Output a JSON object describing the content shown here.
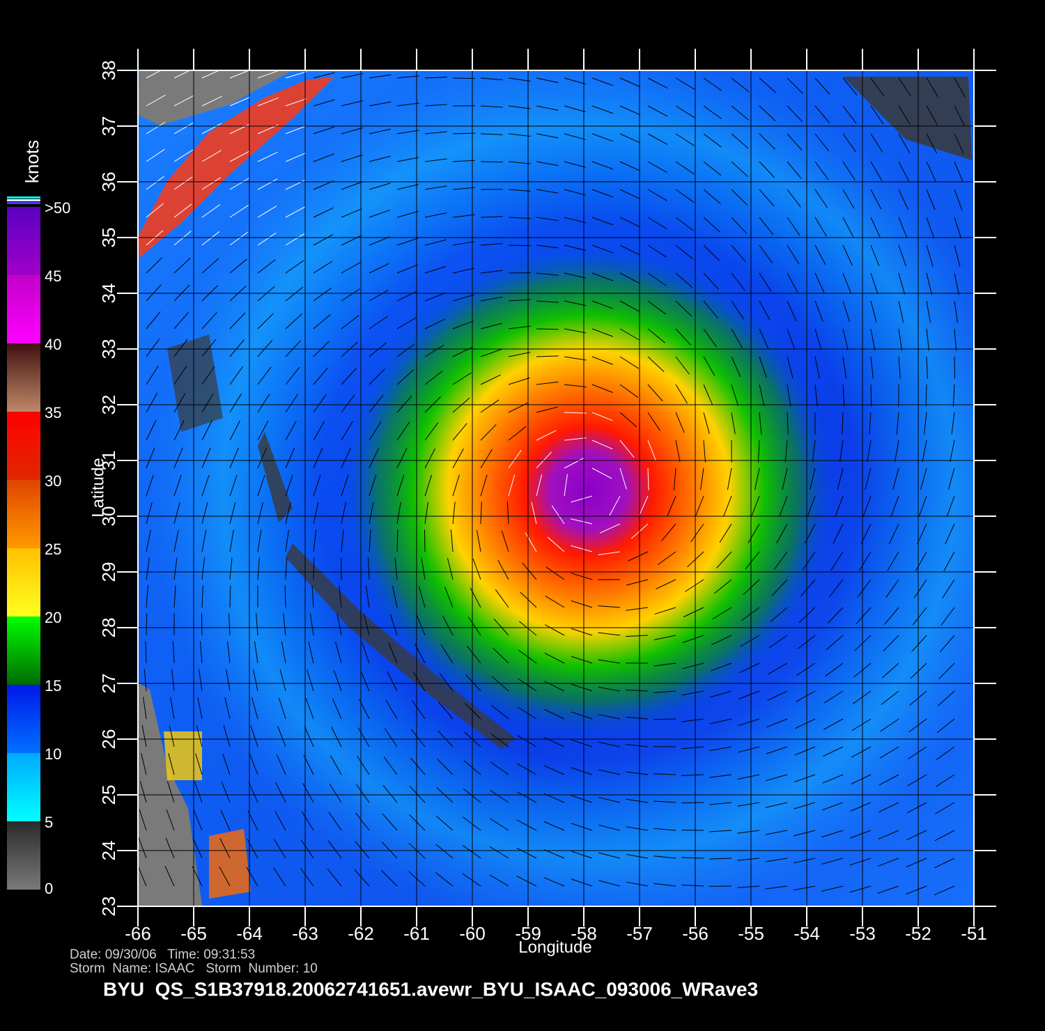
{
  "map": {
    "x_label": "Longitude",
    "y_label": "Latitude",
    "xlim": [
      -66,
      -51
    ],
    "ylim": [
      23,
      38
    ],
    "xticks": [
      -66,
      -65,
      -64,
      -63,
      -62,
      -61,
      -60,
      -59,
      -58,
      -57,
      -56,
      -55,
      -54,
      -53,
      -52,
      -51
    ],
    "yticks": [
      23,
      24,
      25,
      26,
      27,
      28,
      29,
      30,
      31,
      32,
      33,
      34,
      35,
      36,
      37,
      38
    ],
    "grid": true,
    "colorbar": {
      "title": "knots",
      "lim": [
        0,
        50
      ],
      "ticks": [
        0,
        5,
        10,
        15,
        20,
        25,
        30,
        35,
        40,
        45,
        {
          "value": 50,
          "label": ">50"
        }
      ],
      "band_colors": [
        [
          "#7a7a7a",
          "#2a2a2a"
        ],
        [
          "#00ffff",
          "#00a8ff"
        ],
        [
          "#0070ff",
          "#0018e8"
        ],
        [
          "#006a00",
          "#00ff00"
        ],
        [
          "#ffff20",
          "#ffc000"
        ],
        [
          "#ff9a00",
          "#e04400"
        ],
        [
          "#e02800",
          "#ff0000"
        ],
        [
          "#c08868",
          "#401010"
        ],
        [
          "#ff00ff",
          "#c000c8"
        ],
        [
          "#a000c8",
          "#5a00c0"
        ]
      ]
    },
    "footer": {
      "date_time": "Date: 09/30/06   Time: 09:31:53",
      "storm": "Storm  Name: ISAAC   Storm  Number: 10",
      "file": "BYU  QS_S1B37918.20062741651.avewr_BYU_ISAAC_093006_WRave3"
    }
  }
}
